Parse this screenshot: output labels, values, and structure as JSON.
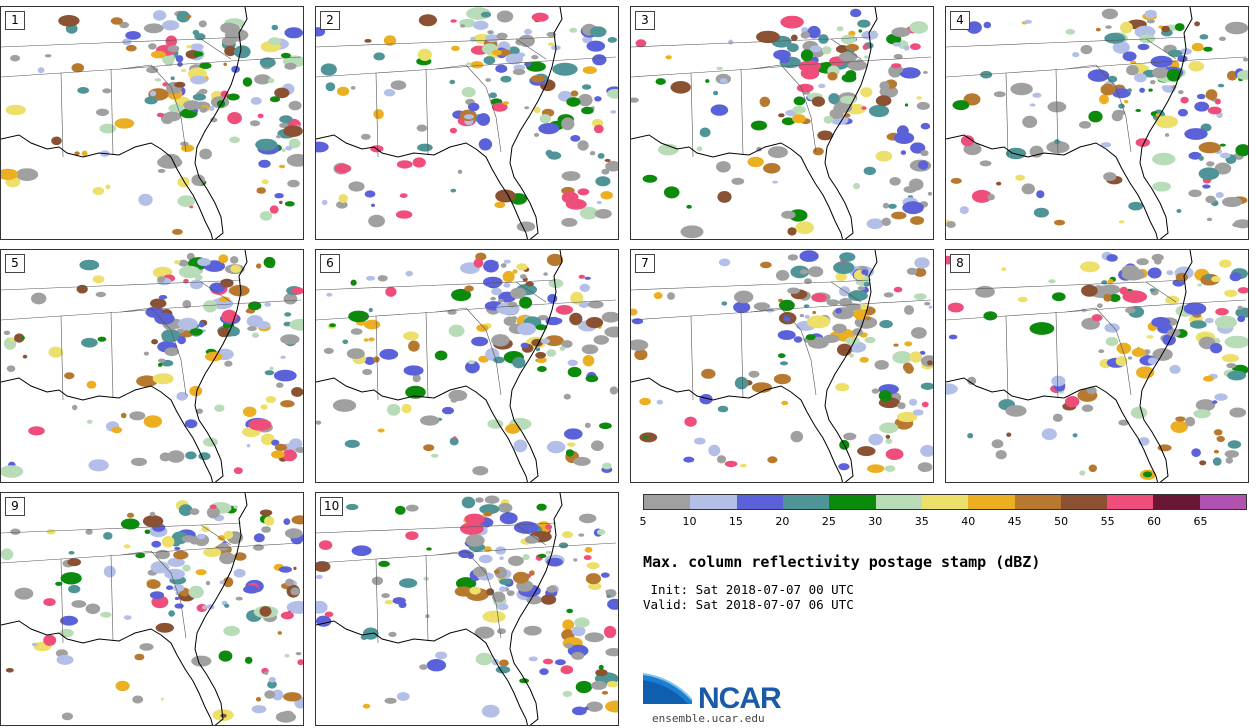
{
  "panels": [
    {
      "label": "1"
    },
    {
      "label": "2"
    },
    {
      "label": "3"
    },
    {
      "label": "4"
    },
    {
      "label": "5"
    },
    {
      "label": "6"
    },
    {
      "label": "7"
    },
    {
      "label": "8"
    },
    {
      "label": "9"
    },
    {
      "label": "10"
    }
  ],
  "colorbar": {
    "colors": [
      "#a0a0a0",
      "#b4bfe8",
      "#5b62d9",
      "#4f9497",
      "#0b8a0b",
      "#b8dcb8",
      "#ece06a",
      "#ecaf22",
      "#b7792f",
      "#8a5233",
      "#ef4e7b",
      "#6a1635",
      "#b152b0"
    ],
    "ticks": [
      "5",
      "10",
      "15",
      "20",
      "25",
      "30",
      "35",
      "40",
      "45",
      "50",
      "55",
      "60",
      "65"
    ]
  },
  "title": "Max. column reflectivity postage stamp (dBZ)",
  "init": " Init: Sat 2018-07-07 00 UTC",
  "valid": "Valid: Sat 2018-07-07 06 UTC",
  "logo": {
    "text": "NCAR",
    "url": "ensemble.ucar.edu"
  }
}
